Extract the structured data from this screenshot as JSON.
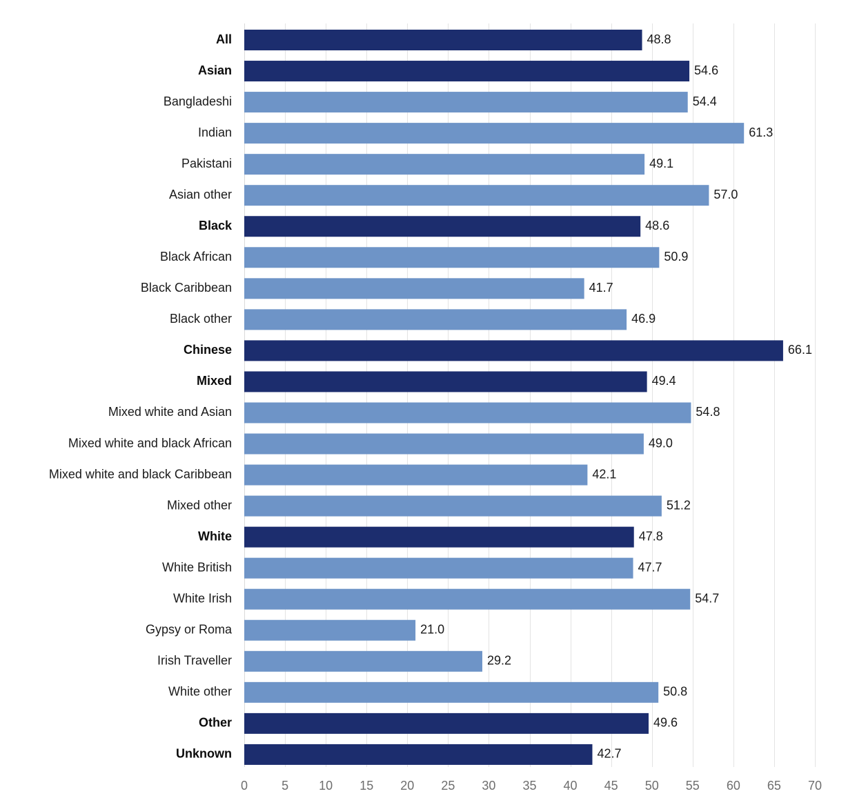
{
  "chart_data": {
    "type": "bar",
    "orientation": "horizontal",
    "title": "",
    "xlabel": "",
    "ylabel": "",
    "xlim": [
      0,
      70
    ],
    "x_ticks": [
      0,
      5,
      10,
      15,
      20,
      25,
      30,
      35,
      40,
      45,
      50,
      55,
      60,
      65,
      70
    ],
    "grid": true,
    "colors": {
      "group": "#1c2d6e",
      "subgroup": "#6e94c7"
    },
    "categories": [
      "All",
      "Asian",
      "Bangladeshi",
      "Indian",
      "Pakistani",
      "Asian other",
      "Black",
      "Black African",
      "Black Caribbean",
      "Black other",
      "Chinese",
      "Mixed",
      "Mixed white and Asian",
      "Mixed white and black African",
      "Mixed white and black Caribbean",
      "Mixed other",
      "White",
      "White British",
      "White Irish",
      "Gypsy or Roma",
      "Irish Traveller",
      "White other",
      "Other",
      "Unknown"
    ],
    "values": [
      48.8,
      54.6,
      54.4,
      61.3,
      49.1,
      57.0,
      48.6,
      50.9,
      41.7,
      46.9,
      66.1,
      49.4,
      54.8,
      49.0,
      42.1,
      51.2,
      47.8,
      47.7,
      54.7,
      21.0,
      29.2,
      50.8,
      49.6,
      42.7
    ],
    "value_labels": [
      "48.8",
      "54.6",
      "54.4",
      "61.3",
      "49.1",
      "57.0",
      "48.6",
      "50.9",
      "41.7",
      "46.9",
      "66.1",
      "49.4",
      "54.8",
      "49.0",
      "42.1",
      "51.2",
      "47.8",
      "47.7",
      "54.7",
      "21.0",
      "29.2",
      "50.8",
      "49.6",
      "42.7"
    ],
    "is_group": [
      true,
      true,
      false,
      false,
      false,
      false,
      true,
      false,
      false,
      false,
      true,
      true,
      false,
      false,
      false,
      false,
      true,
      false,
      false,
      false,
      false,
      false,
      true,
      true
    ]
  }
}
